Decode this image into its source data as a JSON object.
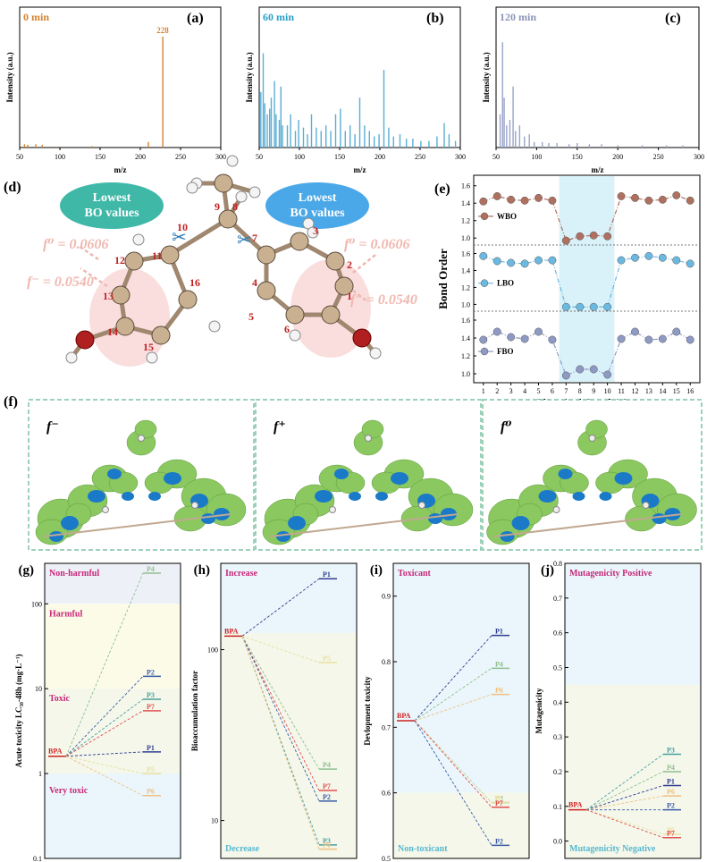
{
  "spectra": {
    "y_label": "Intensity (a.u.)",
    "x_label": "m/z",
    "x_ticks": [
      "50",
      "100",
      "150",
      "200",
      "250",
      "300"
    ],
    "panels": [
      {
        "letter": "(a)",
        "time": "0 min",
        "time_color": "#d4832e",
        "bar_color": "#d4832e",
        "peak_label": "228",
        "peaks": [
          [
            56,
            0.03
          ],
          [
            60,
            0.025
          ],
          [
            70,
            0.03
          ],
          [
            78,
            0.025
          ],
          [
            90,
            0.01
          ],
          [
            140,
            0.012
          ],
          [
            210,
            0.05
          ],
          [
            228,
            1.0
          ]
        ]
      },
      {
        "letter": "(b)",
        "time": "60 min",
        "time_color": "#2aa0c8",
        "bar_color": "#5aaed4",
        "peak_label": "",
        "peaks": [
          [
            52,
            0.5
          ],
          [
            55,
            0.85
          ],
          [
            57,
            0.4
          ],
          [
            60,
            0.3
          ],
          [
            63,
            0.35
          ],
          [
            65,
            0.45
          ],
          [
            69,
            0.6
          ],
          [
            71,
            0.3
          ],
          [
            75,
            0.25
          ],
          [
            77,
            0.55
          ],
          [
            79,
            0.2
          ],
          [
            85,
            0.2
          ],
          [
            89,
            0.3
          ],
          [
            95,
            0.15
          ],
          [
            99,
            0.25
          ],
          [
            105,
            0.18
          ],
          [
            110,
            0.12
          ],
          [
            115,
            0.3
          ],
          [
            121,
            0.18
          ],
          [
            127,
            0.15
          ],
          [
            133,
            0.2
          ],
          [
            139,
            0.15
          ],
          [
            145,
            0.3
          ],
          [
            151,
            0.35
          ],
          [
            157,
            0.15
          ],
          [
            163,
            0.2
          ],
          [
            169,
            0.12
          ],
          [
            175,
            0.45
          ],
          [
            181,
            0.2
          ],
          [
            187,
            0.15
          ],
          [
            193,
            0.1
          ],
          [
            199,
            0.12
          ],
          [
            205,
            0.7
          ],
          [
            211,
            0.18
          ],
          [
            217,
            0.1
          ],
          [
            225,
            0.12
          ],
          [
            233,
            0.08
          ],
          [
            241,
            0.08
          ],
          [
            251,
            0.06
          ],
          [
            261,
            0.06
          ],
          [
            271,
            0.1
          ],
          [
            280,
            0.22
          ],
          [
            286,
            0.12
          ],
          [
            294,
            0.06
          ]
        ]
      },
      {
        "letter": "(c)",
        "time": "120 min",
        "time_color": "#8a94b8",
        "bar_color": "#9aa4c8",
        "peak_label": "",
        "peaks": [
          [
            55,
            0.3
          ],
          [
            58,
            0.95
          ],
          [
            60,
            0.45
          ],
          [
            63,
            0.2
          ],
          [
            67,
            0.25
          ],
          [
            71,
            0.55
          ],
          [
            74,
            0.15
          ],
          [
            79,
            0.2
          ],
          [
            85,
            0.1
          ],
          [
            91,
            0.12
          ],
          [
            97,
            0.05
          ],
          [
            107,
            0.05
          ],
          [
            115,
            0.04
          ],
          [
            125,
            0.04
          ],
          [
            140,
            0.03
          ],
          [
            150,
            0.04
          ],
          [
            165,
            0.03
          ],
          [
            180,
            0.03
          ],
          [
            200,
            0.02
          ],
          [
            230,
            0.02
          ],
          [
            260,
            0.02
          ],
          [
            280,
            0.02
          ]
        ]
      }
    ]
  },
  "structure": {
    "letter": "(d)",
    "lowest_bo": "Lowest BO values",
    "lowest_bo_lines": [
      "Lowest",
      "BO values"
    ],
    "f0_label": "f⁰ = 0.0606",
    "fminus_label": "f⁻ = 0.0540",
    "atom_numbers": [
      "1",
      "2",
      "3",
      "4",
      "5",
      "6",
      "7",
      "8",
      "9",
      "10",
      "11",
      "12",
      "13",
      "14",
      "15",
      "16"
    ]
  },
  "bond_order": {
    "letter": "(e)",
    "y_label": "Bond Order",
    "x_label": "Chemical Bond (No.)",
    "x_ticks": [
      "1",
      "2",
      "3",
      "4",
      "5",
      "6",
      "7",
      "8",
      "9",
      "10",
      "11",
      "12",
      "13",
      "14",
      "15",
      "16"
    ],
    "y_ticks": [
      "1.0",
      "1.2",
      "1.4",
      "1.6"
    ],
    "series": [
      {
        "name": "WBO",
        "color": "#b07060",
        "values": [
          1.42,
          1.48,
          1.44,
          1.43,
          1.46,
          1.43,
          0.97,
          1.02,
          1.03,
          1.02,
          1.48,
          1.46,
          1.43,
          1.44,
          1.49,
          1.43
        ]
      },
      {
        "name": "LBO",
        "color": "#6bb8e0",
        "values": [
          1.57,
          1.51,
          1.49,
          1.48,
          1.52,
          1.52,
          0.97,
          0.97,
          0.97,
          0.97,
          1.52,
          1.55,
          1.57,
          1.55,
          1.52,
          1.48
        ]
      },
      {
        "name": "FBO",
        "color": "#8e9ac4",
        "values": [
          1.38,
          1.47,
          1.41,
          1.39,
          1.47,
          1.38,
          0.98,
          1.05,
          1.05,
          0.99,
          1.39,
          1.47,
          1.38,
          1.39,
          1.47,
          1.38
        ]
      }
    ],
    "highlight_range": [
      6.5,
      10.5
    ]
  },
  "fukui": {
    "letter": "(f)",
    "panels": [
      "f⁻",
      "f⁺",
      "f⁰"
    ]
  },
  "toxicity": {
    "panels": [
      {
        "letter": "(g)",
        "y_label": "Acute toxicity LC₅₀-48h (mg·L⁻¹)",
        "scale": "log",
        "y_ticks": [
          "0.1",
          "1",
          "10",
          "100"
        ],
        "zones": [
          {
            "label": "Non-harmful",
            "color": "#eef0f8",
            "label_color": "#c8287a"
          },
          {
            "label": "Harmful",
            "color": "#fbfbe8",
            "label_color": "#c8287a"
          },
          {
            "label": "Toxic",
            "color": "#f4f7ea",
            "label_color": "#c8287a"
          },
          {
            "label": "Very toxic",
            "color": "#eaf6fb",
            "label_color": "#c8287a"
          }
        ],
        "bpa": 1.6,
        "products": [
          {
            "name": "P4",
            "value": 230,
            "color": "#8fbf8f"
          },
          {
            "name": "P2",
            "value": 14,
            "color": "#3a5ca8"
          },
          {
            "name": "P3",
            "value": 7.5,
            "color": "#4aa0a0"
          },
          {
            "name": "P7",
            "value": 5.5,
            "color": "#e05050"
          },
          {
            "name": "P1",
            "value": 1.8,
            "color": "#303c90"
          },
          {
            "name": "P5",
            "value": 1.0,
            "color": "#e8e0a0"
          },
          {
            "name": "P6",
            "value": 0.55,
            "color": "#f0c080"
          }
        ]
      },
      {
        "letter": "(h)",
        "y_label": "Bioaccumulation factor",
        "scale": "log",
        "y_ticks": [
          "10",
          "100"
        ],
        "zones": [
          {
            "label": "Increase",
            "color": "#eaf6fb",
            "label_color": "#c8287a"
          },
          {
            "label": "Decrease",
            "color": "#f4f7ea",
            "label_color": "#59b8d0"
          }
        ],
        "bpa": 120,
        "products": [
          {
            "name": "P1",
            "value": 260,
            "color": "#303c90"
          },
          {
            "name": "P5",
            "value": 84,
            "color": "#e8e0a0"
          },
          {
            "name": "P4",
            "value": 20,
            "color": "#8fbf8f"
          },
          {
            "name": "P7",
            "value": 15,
            "color": "#e05050"
          },
          {
            "name": "P2",
            "value": 13,
            "color": "#3a5ca8"
          },
          {
            "name": "P3",
            "value": 7.2,
            "color": "#4aa0a0"
          },
          {
            "name": "P6",
            "value": 6.8,
            "color": "#f0c080"
          }
        ]
      },
      {
        "letter": "(i)",
        "y_label": "Devlopment toxicity",
        "scale": "linear",
        "y_ticks": [
          "0.5",
          "0.6",
          "0.7",
          "0.8",
          "0.9"
        ],
        "zones": [
          {
            "label": "Toxicant",
            "color": "#eaf6fb",
            "label_color": "#c8287a"
          },
          {
            "label": "Non-toxicant",
            "color": "#f4f7ea",
            "label_color": "#59b8d0"
          }
        ],
        "bpa": 0.71,
        "products": [
          {
            "name": "P1",
            "value": 0.84,
            "color": "#303c90"
          },
          {
            "name": "P4",
            "value": 0.79,
            "color": "#8fbf8f"
          },
          {
            "name": "P6",
            "value": 0.75,
            "color": "#f0c080"
          },
          {
            "name": "P3",
            "value": 0.585,
            "color": "#4aa0a0"
          },
          {
            "name": "P5",
            "value": 0.585,
            "color": "#e8e0a0"
          },
          {
            "name": "P7",
            "value": 0.578,
            "color": "#e05050"
          },
          {
            "name": "P2",
            "value": 0.52,
            "color": "#3a5ca8"
          }
        ]
      },
      {
        "letter": "(j)",
        "y_label": "Mutagenicity",
        "scale": "linear",
        "y_ticks": [
          "0.0",
          "0.1",
          "0.2",
          "0.3",
          "0.4",
          "0.5",
          "0.6",
          "0.7",
          "0.8"
        ],
        "zones": [
          {
            "label": "Mutagenicity Positive",
            "color": "#eaf6fb",
            "label_color": "#c8287a"
          },
          {
            "label": "Mutagenicity Negative",
            "color": "#f4f7ea",
            "label_color": "#59b8d0"
          }
        ],
        "bpa": 0.09,
        "products": [
          {
            "name": "P3",
            "value": 0.25,
            "color": "#4aa0a0"
          },
          {
            "name": "P4",
            "value": 0.2,
            "color": "#8fbf8f"
          },
          {
            "name": "P1",
            "value": 0.16,
            "color": "#303c90"
          },
          {
            "name": "P6",
            "value": 0.13,
            "color": "#f0c080"
          },
          {
            "name": "P2",
            "value": 0.09,
            "color": "#3a5ca8"
          },
          {
            "name": "P5",
            "value": 0.02,
            "color": "#e8e0a0"
          },
          {
            "name": "P7",
            "value": 0.01,
            "color": "#e05050"
          }
        ]
      }
    ],
    "bpa_label": "BPA"
  }
}
